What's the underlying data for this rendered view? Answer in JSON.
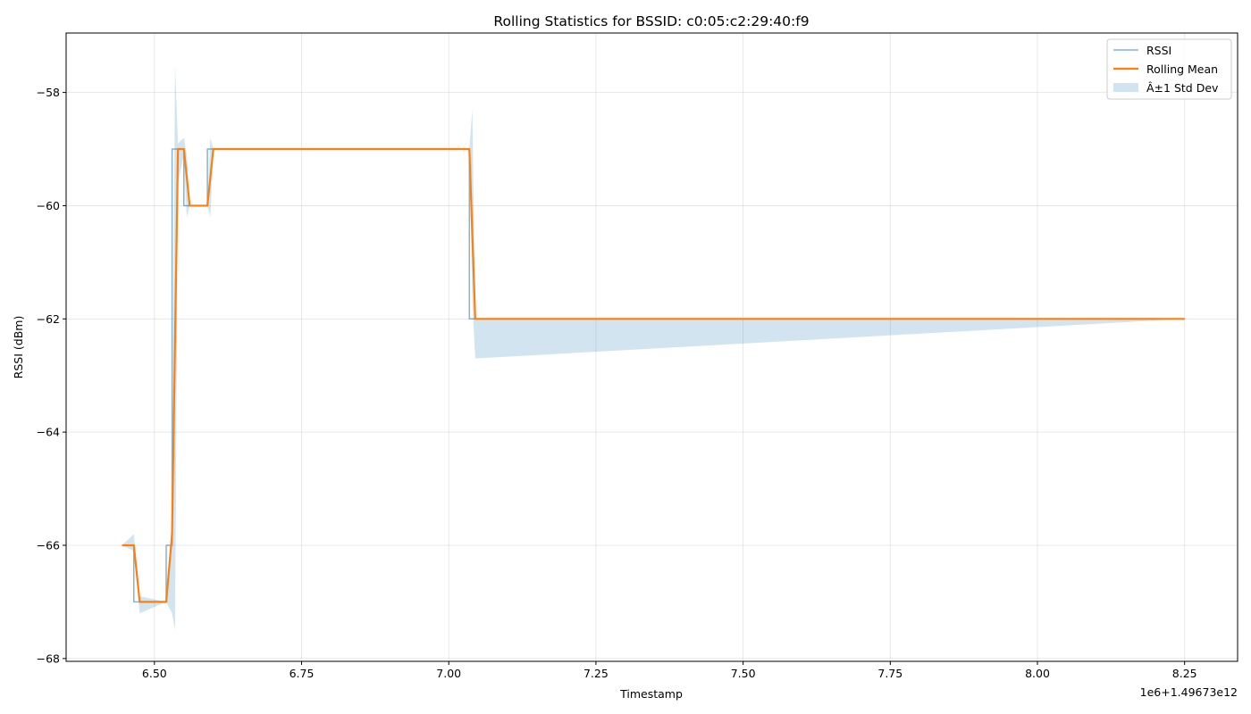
{
  "chart_data": {
    "type": "line",
    "title": "Rolling Statistics for BSSID: c0:05:c2:29:40:f9",
    "xlabel": "Timestamp",
    "ylabel": "RSSI (dBm)",
    "x_offset_label": "1e6+1.49673e12",
    "xlim": [
      6.35,
      8.34
    ],
    "ylim": [
      -68.05,
      -56.95
    ],
    "x_ticks": [
      6.5,
      6.75,
      7.0,
      7.25,
      7.5,
      7.75,
      8.0,
      8.25
    ],
    "x_tick_labels": [
      "6.50",
      "6.75",
      "7.00",
      "7.25",
      "7.50",
      "7.75",
      "8.00",
      "8.25"
    ],
    "y_ticks": [
      -68,
      -66,
      -64,
      -62,
      -60,
      -58
    ],
    "y_tick_labels": [
      "−68",
      "−66",
      "−64",
      "−62",
      "−60",
      "−58"
    ],
    "grid": true,
    "legend_position": "top-right",
    "colors": {
      "rssi": "#1f77b4",
      "rolling_mean": "#ff7f0e",
      "std_band": "#1f77b4"
    },
    "series": [
      {
        "name": "RSSI",
        "x": [
          6.445,
          6.465,
          6.465,
          6.52,
          6.52,
          6.53,
          6.53,
          6.55,
          6.55,
          6.59,
          6.59,
          7.035,
          7.035,
          8.25
        ],
        "values": [
          -66,
          -66,
          -67,
          -67,
          -66,
          -66,
          -59,
          -59,
          -60,
          -60,
          -59,
          -59,
          -62,
          -62
        ]
      },
      {
        "name": "Rolling Mean",
        "x": [
          6.445,
          6.465,
          6.475,
          6.52,
          6.53,
          6.54,
          6.55,
          6.56,
          6.59,
          6.6,
          7.035,
          7.045,
          8.25
        ],
        "values": [
          -66,
          -66,
          -67,
          -67,
          -65.8,
          -59,
          -59,
          -60,
          -60,
          -59,
          -59,
          -62,
          -62
        ]
      },
      {
        "name": "Â±1 Std Dev",
        "x": [
          6.445,
          6.465,
          6.475,
          6.52,
          6.53,
          6.535,
          6.54,
          6.55,
          6.555,
          6.56,
          6.59,
          6.595,
          6.6,
          7.035,
          7.04,
          7.045,
          8.25
        ],
        "upper": [
          -66,
          -65.8,
          -66.9,
          -67,
          -65.5,
          -57.5,
          -58.9,
          -58.8,
          -59.1,
          -60,
          -60,
          -58.8,
          -59,
          -59,
          -58.3,
          -62,
          -62
        ],
        "lower": [
          -66,
          -66.1,
          -67.2,
          -67,
          -67.2,
          -67.5,
          -59.6,
          -59.1,
          -60.2,
          -60,
          -60,
          -60.2,
          -59,
          -59,
          -61.7,
          -62.7,
          -62
        ]
      }
    ]
  }
}
